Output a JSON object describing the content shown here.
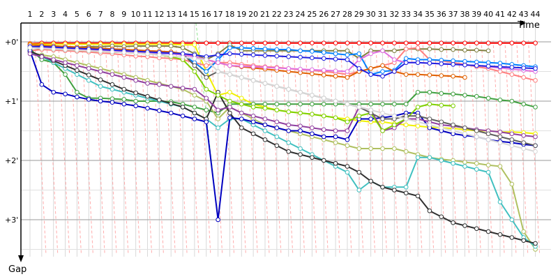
{
  "chart_data": {
    "type": "line",
    "title": "",
    "xlabel": "Time",
    "ylabel": "Gap",
    "x_ticks": [
      "1",
      "2",
      "3",
      "4",
      "5",
      "6",
      "7",
      "8",
      "9",
      "10",
      "11",
      "12",
      "13",
      "14",
      "15",
      "16",
      "17",
      "18",
      "19",
      "20",
      "21",
      "22",
      "23",
      "24",
      "25",
      "26",
      "27",
      "28",
      "29",
      "30",
      "31",
      "32",
      "33",
      "34",
      "35",
      "36",
      "37",
      "38",
      "39",
      "40",
      "41",
      "42",
      "43",
      "44"
    ],
    "y_ticks": [
      "+0'",
      "+1'",
      "+2'",
      "+3'"
    ],
    "xlim": [
      0,
      44
    ],
    "ylim": [
      0,
      3.55
    ],
    "grid": true,
    "legend": "none",
    "series": [
      {
        "color": "#ff0000",
        "values": [
          0.03,
          0.02,
          0.02,
          0.02,
          0.02,
          0.02,
          0.02,
          0.02,
          0.02,
          0.02,
          0.02,
          0.02,
          0.02,
          0.02,
          0.02,
          0.02,
          0.02,
          0.02,
          0.02,
          0.02,
          0.02,
          0.02,
          0.02,
          0.02,
          0.02,
          0.02,
          0.02,
          0.02,
          0.02,
          0.02,
          0.02,
          0.02,
          0.02,
          0.02,
          0.02,
          0.02,
          0.02,
          0.02,
          0.02,
          0.02,
          0.02,
          0.02,
          0.02,
          0.02
        ]
      },
      {
        "color": "#f0f000",
        "values": [
          0.04,
          0.04,
          0.04,
          0.04,
          0.04,
          0.04,
          0.04,
          0.04,
          0.04,
          0.04,
          0.04,
          0.04,
          0.04,
          0.05,
          0.05,
          0.5,
          0.9,
          0.85,
          0.95,
          1.05,
          1.1,
          1.15,
          1.18,
          1.2,
          1.22,
          1.25,
          1.28,
          1.3,
          1.33,
          1.35,
          1.35,
          1.38,
          1.4,
          1.42,
          1.44,
          1.45,
          1.46,
          1.48,
          1.5,
          1.5,
          1.52,
          1.52,
          1.53,
          1.55
        ]
      },
      {
        "color": "#808040",
        "values": [
          0.15,
          0.12,
          0.1,
          0.1,
          0.09,
          0.08,
          0.08,
          0.07,
          0.08,
          0.07,
          0.07,
          0.07,
          0.07,
          0.1,
          0.2,
          0.3,
          0.2,
          0.05,
          0.15,
          0.15,
          0.15,
          0.15,
          0.15,
          0.15,
          0.15,
          0.15,
          0.15,
          0.15,
          0.28,
          0.15,
          0.15,
          0.15,
          0.12,
          0.12,
          0.12,
          0.13,
          0.13,
          0.14,
          0.14,
          0.15
        ]
      },
      {
        "color": "#ff8080",
        "values": [
          0.15,
          0.13,
          0.14,
          0.15,
          0.16,
          0.17,
          0.19,
          0.2,
          0.22,
          0.24,
          0.25,
          0.27,
          0.28,
          0.3,
          0.35,
          0.4,
          0.35,
          0.35,
          0.38,
          0.4,
          0.42,
          0.43,
          0.45,
          0.47,
          0.48,
          0.5,
          0.52,
          0.55,
          0.5,
          0.45,
          0.4,
          0.35,
          0.12,
          0.1,
          0.3,
          0.32,
          0.35,
          0.38,
          0.42,
          0.45,
          0.5,
          0.55,
          0.6,
          0.65
        ]
      },
      {
        "color": "#40a040",
        "values": [
          0.12,
          0.3,
          0.35,
          0.55,
          0.85,
          0.95,
          0.95,
          0.96,
          0.97,
          1.0,
          1.0,
          1.0,
          1.01,
          1.05,
          1.1,
          1.15,
          1.2,
          1.05,
          1.05,
          1.05,
          1.05,
          1.05,
          1.05,
          1.05,
          1.05,
          1.05,
          1.05,
          1.05,
          1.05,
          1.05,
          1.05,
          1.05,
          1.05,
          0.85,
          0.85,
          0.87,
          0.88,
          0.9,
          0.92,
          0.95,
          0.98,
          1.0,
          1.05,
          1.1
        ]
      },
      {
        "color": "#b0c060",
        "values": [
          0.18,
          0.22,
          0.25,
          0.3,
          0.35,
          0.4,
          0.45,
          0.5,
          0.55,
          0.6,
          0.65,
          0.7,
          0.75,
          0.8,
          0.9,
          1.0,
          1.3,
          1.1,
          1.2,
          1.3,
          1.4,
          1.45,
          1.5,
          1.55,
          1.6,
          1.65,
          1.7,
          1.75,
          1.8,
          1.8,
          1.8,
          1.8,
          1.85,
          1.9,
          1.95,
          1.98,
          2.0,
          2.03,
          2.05,
          2.08,
          2.1,
          2.4,
          3.2,
          3.5
        ]
      },
      {
        "color": "#40c0c0",
        "values": [
          0.18,
          0.25,
          0.35,
          0.45,
          0.55,
          0.65,
          0.75,
          0.8,
          0.85,
          0.9,
          0.95,
          1.0,
          1.05,
          1.1,
          1.2,
          1.3,
          1.45,
          1.3,
          1.3,
          1.4,
          1.5,
          1.6,
          1.7,
          1.8,
          1.9,
          2.0,
          2.1,
          2.2,
          2.5,
          2.35,
          2.45,
          2.45,
          2.45,
          1.95,
          1.95,
          2.0,
          2.05,
          2.1,
          2.15,
          2.2,
          2.7,
          3.0,
          3.3,
          3.45
        ]
      },
      {
        "color": "#303030",
        "values": [
          0.16,
          0.24,
          0.32,
          0.4,
          0.48,
          0.56,
          0.64,
          0.72,
          0.8,
          0.86,
          0.92,
          0.98,
          1.04,
          1.1,
          1.2,
          1.3,
          0.85,
          1.2,
          1.45,
          1.55,
          1.65,
          1.75,
          1.85,
          1.9,
          1.95,
          2.0,
          2.05,
          2.1,
          2.2,
          2.35,
          2.45,
          2.5,
          2.55,
          2.6,
          2.85,
          2.95,
          3.05,
          3.1,
          3.15,
          3.2,
          3.25,
          3.3,
          3.35,
          3.4
        ]
      },
      {
        "color": "#0000c0",
        "values": [
          0.15,
          0.72,
          0.85,
          0.88,
          0.93,
          0.97,
          1.0,
          1.02,
          1.05,
          1.08,
          1.12,
          1.16,
          1.2,
          1.25,
          1.3,
          1.35,
          3.0,
          1.28,
          1.3,
          1.35,
          1.4,
          1.45,
          1.5,
          1.5,
          1.55,
          1.6,
          1.6,
          1.65,
          1.3,
          1.3,
          1.28,
          1.25,
          1.2,
          1.2,
          1.45,
          1.5,
          1.55,
          1.58,
          1.6,
          1.65,
          1.68,
          1.7,
          1.73,
          1.75
        ]
      },
      {
        "color": "#0080ff",
        "values": [
          0.1,
          0.1,
          0.12,
          0.13,
          0.14,
          0.15,
          0.16,
          0.17,
          0.18,
          0.18,
          0.19,
          0.2,
          0.2,
          0.22,
          0.35,
          0.5,
          0.3,
          0.1,
          0.1,
          0.11,
          0.12,
          0.13,
          0.13,
          0.15,
          0.16,
          0.18,
          0.2,
          0.22,
          0.2,
          0.55,
          0.5,
          0.48,
          0.28,
          0.3,
          0.3,
          0.31,
          0.32,
          0.33,
          0.34,
          0.35,
          0.36,
          0.38,
          0.4,
          0.42
        ]
      },
      {
        "color": "#9040a0",
        "values": [
          0.2,
          0.25,
          0.3,
          0.35,
          0.4,
          0.45,
          0.5,
          0.55,
          0.6,
          0.65,
          0.7,
          0.72,
          0.75,
          0.78,
          0.8,
          0.95,
          1.15,
          1.1,
          1.2,
          1.25,
          1.3,
          1.35,
          1.4,
          1.42,
          1.45,
          1.48,
          1.5,
          1.5,
          1.1,
          1.15,
          1.5,
          1.45,
          1.3,
          1.3,
          1.35,
          1.4,
          1.42,
          1.45,
          1.48,
          1.5,
          1.52,
          1.55,
          1.58,
          1.6
        ]
      },
      {
        "color": "#7fd000",
        "values": [
          0.09,
          0.11,
          0.12,
          0.13,
          0.14,
          0.15,
          0.16,
          0.17,
          0.18,
          0.19,
          0.2,
          0.22,
          0.25,
          0.3,
          0.5,
          0.8,
          0.9,
          1.0,
          1.05,
          1.1,
          1.12,
          1.15,
          1.18,
          1.2,
          1.22,
          1.25,
          1.28,
          1.35,
          1.25,
          1.2,
          1.5,
          1.4,
          1.3,
          1.1,
          1.05,
          1.07,
          1.08
        ]
      },
      {
        "color": "#606060",
        "values": [
          0.05,
          0.06,
          0.07,
          0.08,
          0.09,
          0.1,
          0.11,
          0.12,
          0.13,
          0.14,
          0.15,
          0.16,
          0.17,
          0.2,
          0.4,
          0.6,
          0.5,
          0.55,
          0.6,
          0.65,
          0.7,
          0.75,
          0.8,
          0.85,
          0.9,
          0.95,
          1.0,
          1.05,
          1.1,
          1.2,
          1.3,
          1.3,
          1.25,
          1.25,
          1.3,
          1.35,
          1.4,
          1.45,
          1.5,
          1.55,
          1.6,
          1.65,
          1.7,
          1.75
        ]
      },
      {
        "color": "#e06000",
        "values": [
          0.05,
          0.06,
          0.07,
          0.08,
          0.09,
          0.1,
          0.11,
          0.12,
          0.13,
          0.14,
          0.15,
          0.16,
          0.17,
          0.2,
          0.25,
          0.3,
          0.35,
          0.4,
          0.42,
          0.44,
          0.46,
          0.48,
          0.5,
          0.52,
          0.54,
          0.56,
          0.58,
          0.6,
          0.5,
          0.45,
          0.4,
          0.5,
          0.55,
          0.55,
          0.56,
          0.57,
          0.58,
          0.6
        ]
      },
      {
        "color": "#e070e0",
        "values": [
          0.08,
          0.09,
          0.1,
          0.11,
          0.12,
          0.13,
          0.14,
          0.15,
          0.16,
          0.17,
          0.18,
          0.19,
          0.2,
          0.22,
          0.25,
          0.3,
          0.35,
          0.4,
          0.41,
          0.42,
          0.43,
          0.44,
          0.45,
          0.46,
          0.47,
          0.48,
          0.49,
          0.5,
          0.3,
          0.2,
          0.15,
          0.3,
          0.35,
          0.35,
          0.36,
          0.37,
          0.38,
          0.39,
          0.4,
          0.42,
          0.44,
          0.46,
          0.48,
          0.5
        ]
      },
      {
        "color": "#2020e0",
        "values": [
          0.08,
          0.08,
          0.09,
          0.1,
          0.11,
          0.12,
          0.13,
          0.14,
          0.15,
          0.16,
          0.17,
          0.18,
          0.19,
          0.2,
          0.22,
          0.25,
          0.22,
          0.2,
          0.21,
          0.22,
          0.23,
          0.24,
          0.25,
          0.26,
          0.27,
          0.28,
          0.29,
          0.3,
          0.45,
          0.55,
          0.58,
          0.5,
          0.35,
          0.35,
          0.36,
          0.37,
          0.38,
          0.39,
          0.4,
          0.41,
          0.42,
          0.43,
          0.44,
          0.45
        ]
      },
      {
        "color": "#d8d8d8",
        "values": [
          0.1,
          0.11,
          0.12,
          0.13,
          0.14,
          0.15,
          0.16,
          0.17,
          0.18,
          0.19,
          0.2,
          0.22,
          0.24,
          0.26,
          0.28,
          0.3,
          0.5,
          0.55,
          0.6,
          0.65,
          0.7,
          0.75,
          0.8,
          0.85,
          0.9,
          0.95,
          1.0,
          1.05,
          1.1,
          1.15,
          1.2,
          1.25,
          1.3,
          1.35,
          1.4,
          1.45,
          1.5,
          1.55,
          1.6,
          1.65,
          1.7,
          1.75,
          1.8,
          1.85
        ]
      }
    ]
  }
}
